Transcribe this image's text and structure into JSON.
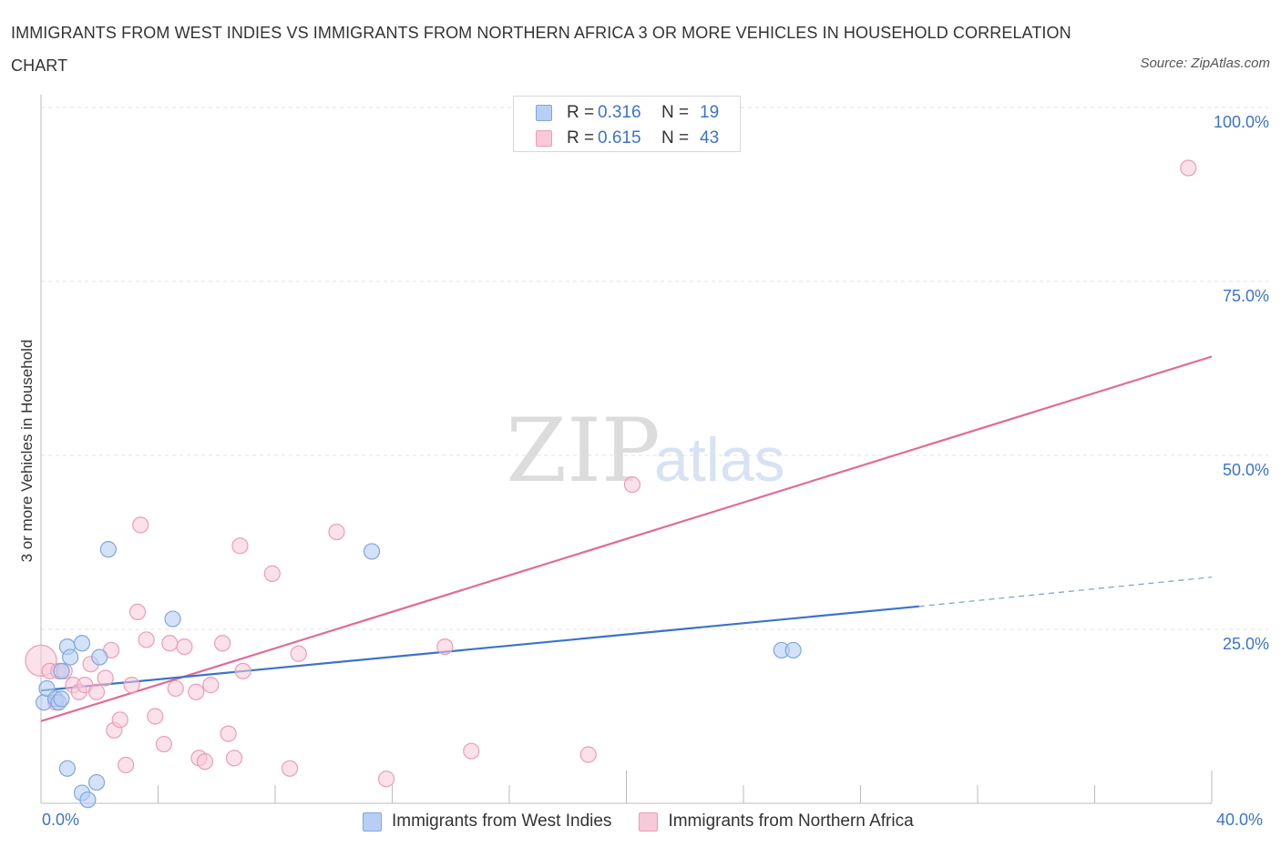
{
  "page": {
    "title": "IMMIGRANTS FROM WEST INDIES VS IMMIGRANTS FROM NORTHERN AFRICA 3 OR MORE VEHICLES IN HOUSEHOLD CORRELATION CHART",
    "source": "Source: ZipAtlas.com",
    "watermark_zip": "ZIP",
    "watermark_atlas": "atlas"
  },
  "legend_top": {
    "rows": [
      {
        "r_label": "R =",
        "r_value": "0.316",
        "n_label": "N =",
        "n_value": "19"
      },
      {
        "r_label": "R =",
        "r_value": "0.615",
        "n_label": "N =",
        "n_value": "43"
      }
    ]
  },
  "colors": {
    "blue": "#3a74c9",
    "blue_fill": "#b7cff4",
    "blue_stroke": "#7ea6e0",
    "pink": "#e06b98",
    "pink_fill": "#f8c9d8",
    "pink_stroke": "#ec9cb7",
    "grid": "#e3e3e3",
    "axis_text": "#3a74c9"
  },
  "chart_data": {
    "type": "scatter",
    "title": "IMMIGRANTS FROM WEST INDIES VS IMMIGRANTS FROM NORTHERN AFRICA 3 OR MORE VEHICLES IN HOUSEHOLD CORRELATION CHART",
    "xlabel": "",
    "ylabel": "3 or more Vehicles in Household",
    "xlim": [
      0,
      40
    ],
    "ylim": [
      0,
      100
    ],
    "x_tick_labels": [
      "0.0%",
      "40.0%"
    ],
    "y_ticks": [
      25,
      50,
      75,
      100
    ],
    "y_tick_labels": [
      "25.0%",
      "50.0%",
      "75.0%",
      "100.0%"
    ],
    "grid": true,
    "legend_position": "top-center",
    "series": [
      {
        "name": "Immigrants from West Indies",
        "color": "#3a74c9",
        "R": 0.316,
        "N": 19,
        "points": [
          [
            0.1,
            14.5
          ],
          [
            0.2,
            16.5
          ],
          [
            0.5,
            15.0
          ],
          [
            0.6,
            14.5
          ],
          [
            0.7,
            15.0
          ],
          [
            0.9,
            22.5
          ],
          [
            1.0,
            21.0
          ],
          [
            1.4,
            23.0
          ],
          [
            0.7,
            19.0
          ],
          [
            2.0,
            21.0
          ],
          [
            2.3,
            36.5
          ],
          [
            4.5,
            26.5
          ],
          [
            11.3,
            36.2
          ],
          [
            0.9,
            5.0
          ],
          [
            1.4,
            1.5
          ],
          [
            1.9,
            3.0
          ],
          [
            1.6,
            0.5
          ],
          [
            25.3,
            22.0
          ],
          [
            25.7,
            22.0
          ]
        ],
        "trend": {
          "x": [
            0,
            30
          ],
          "y": [
            16.2,
            28.3
          ]
        },
        "trend_extension": {
          "x": [
            30,
            40
          ],
          "y": [
            28.3,
            32.5
          ]
        }
      },
      {
        "name": "Immigrants from Northern Africa",
        "color": "#e06b98",
        "R": 0.615,
        "N": 43,
        "points": [
          [
            0.0,
            20.5
          ],
          [
            0.3,
            19.0
          ],
          [
            0.5,
            14.5
          ],
          [
            0.6,
            19.0
          ],
          [
            0.8,
            19.0
          ],
          [
            1.1,
            17.0
          ],
          [
            1.3,
            16.0
          ],
          [
            1.5,
            17.0
          ],
          [
            1.7,
            20.0
          ],
          [
            1.9,
            16.0
          ],
          [
            2.2,
            18.0
          ],
          [
            2.4,
            22.0
          ],
          [
            2.5,
            10.5
          ],
          [
            2.7,
            12.0
          ],
          [
            2.9,
            5.5
          ],
          [
            3.1,
            17.0
          ],
          [
            3.3,
            27.5
          ],
          [
            3.4,
            40.0
          ],
          [
            3.6,
            23.5
          ],
          [
            3.9,
            12.5
          ],
          [
            4.2,
            8.5
          ],
          [
            4.4,
            23.0
          ],
          [
            4.6,
            16.5
          ],
          [
            4.9,
            22.5
          ],
          [
            5.3,
            16.0
          ],
          [
            5.4,
            6.5
          ],
          [
            5.6,
            6.0
          ],
          [
            5.8,
            17.0
          ],
          [
            6.2,
            23.0
          ],
          [
            6.4,
            10.0
          ],
          [
            6.6,
            6.5
          ],
          [
            6.8,
            37.0
          ],
          [
            6.9,
            19.0
          ],
          [
            7.9,
            33.0
          ],
          [
            8.5,
            5.0
          ],
          [
            8.8,
            21.5
          ],
          [
            10.1,
            39.0
          ],
          [
            11.8,
            3.5
          ],
          [
            13.8,
            22.5
          ],
          [
            14.7,
            7.5
          ],
          [
            18.7,
            7.0
          ],
          [
            20.2,
            45.8
          ],
          [
            39.2,
            91.3
          ]
        ],
        "trend": {
          "x": [
            0,
            40
          ],
          "y": [
            11.8,
            64.2
          ]
        }
      }
    ]
  }
}
